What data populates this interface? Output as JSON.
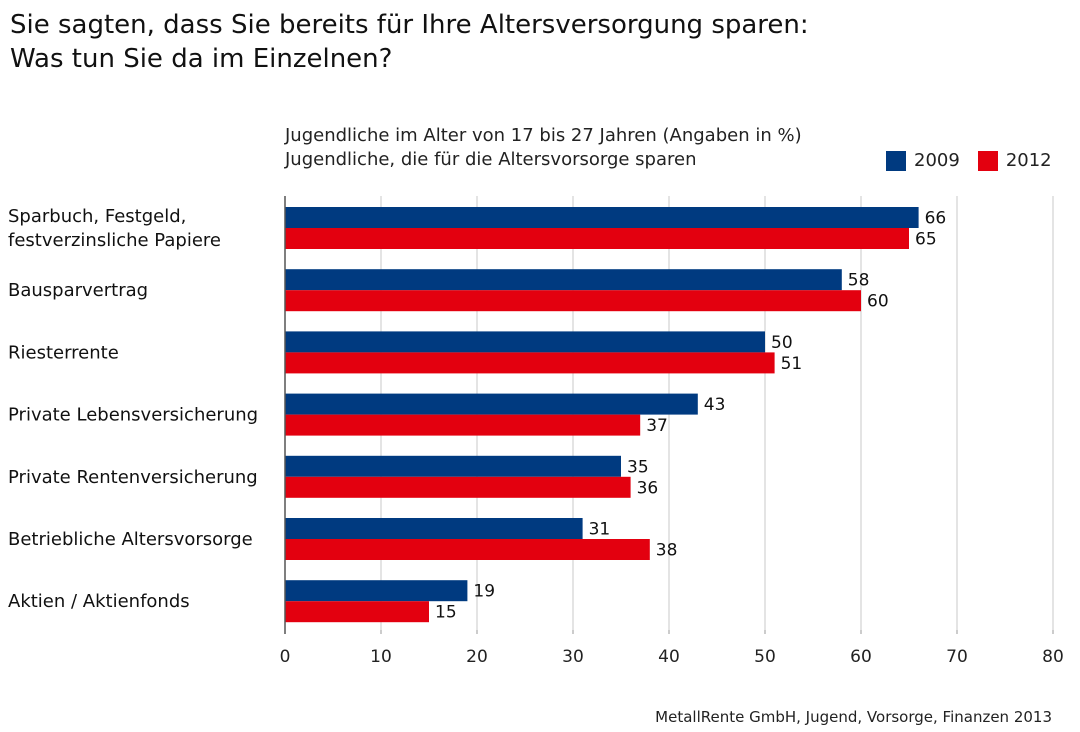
{
  "chart_data": {
    "type": "bar",
    "orientation": "horizontal",
    "title": [
      "Sie sagten, dass Sie bereits für Ihre Altersversorgung sparen:",
      "Was tun Sie da im Einzelnen?"
    ],
    "subtitle": [
      "Jugendliche im Alter von 17 bis 27 Jahren (Angaben in %)",
      "Jugendliche, die für die Altersvorsorge sparen"
    ],
    "categories": [
      [
        "Sparbuch, Festgeld,",
        "festverzinsliche Papiere"
      ],
      [
        "Bausparvertrag"
      ],
      [
        "Riesterrente"
      ],
      [
        "Private Lebensversicherung"
      ],
      [
        "Private Rentenversicherung"
      ],
      [
        "Betriebliche Altersvorsorge"
      ],
      [
        "Aktien / Aktienfonds"
      ]
    ],
    "series": [
      {
        "name": "2009",
        "color": "#003a80",
        "values": [
          66,
          58,
          50,
          43,
          35,
          31,
          19
        ]
      },
      {
        "name": "2012",
        "color": "#e3000f",
        "values": [
          65,
          60,
          51,
          37,
          36,
          38,
          15
        ]
      }
    ],
    "xlim": [
      0,
      80
    ],
    "xticks": [
      0,
      10,
      20,
      30,
      40,
      50,
      60,
      70,
      80
    ],
    "grid": true,
    "legend_position": "top-right",
    "source": "MetallRente GmbH, Jugend, Vorsorge, Finanzen 2013"
  }
}
